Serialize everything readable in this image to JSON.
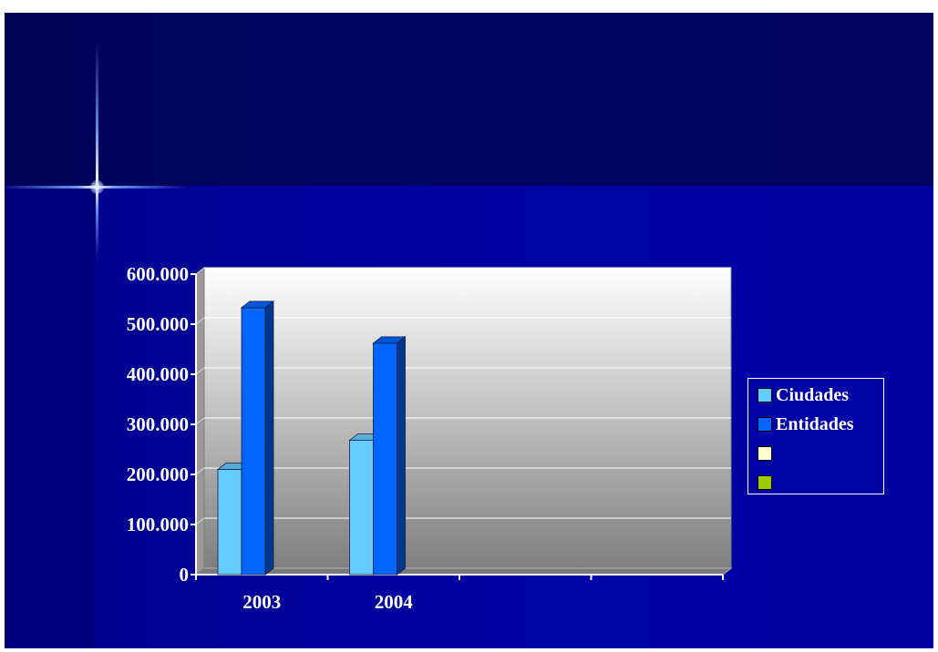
{
  "chart_data": {
    "type": "bar",
    "categories": [
      "2003",
      "2004",
      "",
      ""
    ],
    "y_tick_labels": [
      "0",
      "100.000",
      "200.000",
      "300.000",
      "400.000",
      "500.000",
      "600.000"
    ],
    "ylim": [
      0,
      600000
    ],
    "grid": true,
    "legend_position": "right",
    "series": [
      {
        "name": "Ciudades",
        "color": "#66ccff",
        "values": [
          210000,
          268000,
          null,
          null
        ]
      },
      {
        "name": "Entidades",
        "color": "#0066ff",
        "values": [
          533000,
          462000,
          null,
          null
        ]
      },
      {
        "name": "",
        "color": "#ffffcc",
        "values": [
          null,
          null,
          null,
          null
        ]
      },
      {
        "name": "",
        "color": "#99cc00",
        "values": [
          null,
          null,
          null,
          null
        ]
      }
    ]
  },
  "colors": {
    "background": "#0003a6",
    "title_band": "#01035e",
    "plot_top": "#ffffff",
    "plot_bottom": "#808080",
    "text": "#ffffff"
  }
}
